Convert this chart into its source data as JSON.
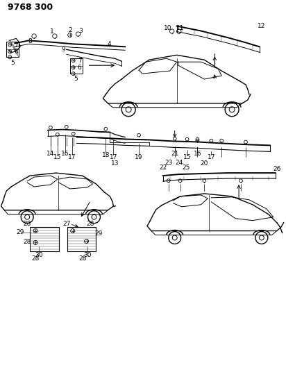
{
  "title": "9768 300",
  "bg_color": "#ffffff",
  "line_color": "#000000",
  "title_fontsize": 9,
  "label_fontsize": 6.5
}
